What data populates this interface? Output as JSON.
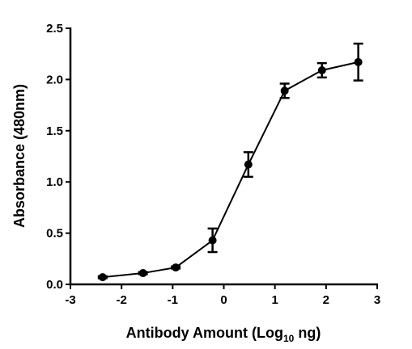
{
  "chart_data": {
    "type": "line",
    "x_label": {
      "text": "Antibody Amount (Log",
      "subscript": "10",
      "suffix": " ng)"
    },
    "y_label": "Absorbance (480nm)",
    "x": [
      -2.37,
      -1.58,
      -0.94,
      -0.22,
      0.48,
      1.19,
      1.92,
      2.63
    ],
    "values": [
      0.07,
      0.11,
      0.165,
      0.43,
      1.17,
      1.89,
      2.09,
      2.17
    ],
    "errors": [
      0.01,
      0.01,
      0.01,
      0.115,
      0.12,
      0.07,
      0.07,
      0.18
    ],
    "color": "#000000",
    "xlim": [
      -3,
      3
    ],
    "xticks": [
      -3,
      -2,
      -1,
      0,
      1,
      2,
      3
    ],
    "ylim": [
      0,
      2.5
    ],
    "yticks": [
      {
        "value": 0,
        "label": "0.0"
      },
      0.5,
      {
        "value": 1,
        "label": "1.0"
      },
      1.5,
      {
        "value": 2,
        "label": "2.0"
      },
      2.5
    ]
  }
}
